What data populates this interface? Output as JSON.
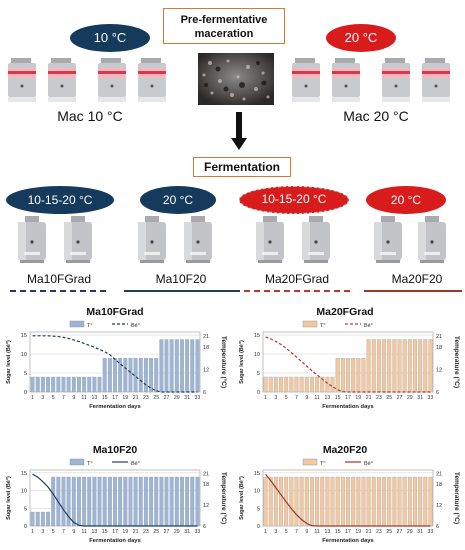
{
  "diagram": {
    "pre_fermentative_line1": "Pre-fermentative",
    "pre_fermentative_line2": "maceration",
    "fermentation_title": "Fermentation",
    "oval_10c": "10 °C",
    "oval_20c": "20 °C",
    "mac_10c_label": "Mac 10 °C",
    "mac_20c_label": "Mac 20 °C",
    "treatments": [
      {
        "oval": "10-15-20 °C",
        "name": "Ma10FGrad",
        "oval_color": "#163a5c",
        "line_color": "#1f3f60",
        "line": "dashed"
      },
      {
        "oval": "20 °C",
        "name": "Ma10F20",
        "oval_color": "#163a5c",
        "line_color": "#1f3f60",
        "line": "solid"
      },
      {
        "oval": "10-15-20 °C",
        "name": "Ma20FGrad",
        "oval_color": "#d81c1c",
        "line_color": "#b33c32",
        "line": "dashed"
      },
      {
        "oval": "20 °C",
        "name": "Ma20F20",
        "oval_color": "#d81c1c",
        "line_color": "#9b3a2c",
        "line": "solid"
      }
    ]
  },
  "chart_data": [
    {
      "type": "bar",
      "title": "Ma10FGrad",
      "legend": [
        "T°",
        "Bé°"
      ],
      "xlabel": "Fermentation days",
      "ylabel": "Sugar level (Bé°)",
      "y2label": "Temperature (°C)",
      "x_ticks": [
        "1",
        "3",
        "5",
        "7",
        "9",
        "11",
        "13",
        "15",
        "17",
        "19",
        "21",
        "23",
        "25",
        "27",
        "29",
        "31",
        "33"
      ],
      "yticks": [
        "0",
        "5",
        "10",
        "15"
      ],
      "y2ticks": [
        "6",
        "12",
        "18",
        "21"
      ],
      "ylim": [
        0,
        15.8
      ],
      "y2lim": [
        6,
        22
      ],
      "bar_color": "#9fb5d3",
      "line_color": "#1f3f60",
      "line_style": "dashed",
      "temperature": [
        10,
        10,
        10,
        10,
        10,
        10,
        10,
        10,
        10,
        10,
        10,
        10,
        10,
        10,
        15,
        15,
        15,
        15,
        15,
        15,
        15,
        15,
        15,
        15,
        15,
        20,
        20,
        20,
        20,
        20,
        20,
        20,
        20
      ],
      "sugar": [
        14.8,
        14.8,
        14.8,
        14.8,
        14.7,
        14.6,
        14.4,
        14.1,
        13.7,
        13.3,
        12.8,
        12.3,
        11.8,
        11.2,
        10.6,
        9.8,
        8.6,
        7.4,
        6.3,
        5.2,
        4.1,
        3.0,
        1.9,
        1.0,
        0.3,
        0,
        0,
        0,
        0,
        0,
        0,
        0,
        0
      ]
    },
    {
      "type": "bar",
      "title": "Ma20FGrad",
      "legend": [
        "T°",
        "Bé°"
      ],
      "xlabel": "Fermentation days",
      "ylabel": "Sugar level (Bé°)",
      "y2label": "Temperature (°C)",
      "x_ticks": [
        "1",
        "3",
        "5",
        "7",
        "9",
        "11",
        "13",
        "15",
        "17",
        "19",
        "21",
        "23",
        "25",
        "27",
        "29",
        "31",
        "33"
      ],
      "yticks": [
        "0",
        "5",
        "10",
        "15"
      ],
      "y2ticks": [
        "6",
        "12",
        "18",
        "21"
      ],
      "ylim": [
        0,
        15.8
      ],
      "y2lim": [
        6,
        22
      ],
      "bar_color": "#f4c79d",
      "line_color": "#b33c32",
      "line_style": "dashed",
      "temperature": [
        10,
        10,
        10,
        10,
        10,
        10,
        10,
        10,
        10,
        10,
        10,
        10,
        10,
        10,
        15,
        15,
        15,
        15,
        15,
        15,
        20,
        20,
        20,
        20,
        20,
        20,
        20,
        20,
        20,
        20,
        20,
        20,
        20
      ],
      "sugar": [
        14.5,
        14,
        13.3,
        12.5,
        11.5,
        10.4,
        9.2,
        8.0,
        6.8,
        5.6,
        4.5,
        3.4,
        2.3,
        1.4,
        0.6,
        0.1,
        0,
        0,
        0,
        0,
        0,
        0,
        0,
        0,
        0,
        0,
        0,
        0,
        0,
        0,
        0,
        0,
        0
      ]
    },
    {
      "type": "bar",
      "title": "Ma10F20",
      "legend": [
        "T°",
        "Bé°"
      ],
      "xlabel": "Fermentation days",
      "ylabel": "Sugar level (Bé°)",
      "y2label": "Temperature (°C)",
      "x_ticks": [
        "1",
        "3",
        "5",
        "7",
        "9",
        "11",
        "13",
        "15",
        "17",
        "19",
        "21",
        "23",
        "25",
        "27",
        "29",
        "31",
        "33"
      ],
      "yticks": [
        "0",
        "5",
        "10",
        "15"
      ],
      "y2ticks": [
        "6",
        "12",
        "18",
        "21"
      ],
      "ylim": [
        0,
        15.8
      ],
      "y2lim": [
        6,
        22
      ],
      "bar_color": "#9fb5d3",
      "line_color": "#1f3f60",
      "line_style": "solid",
      "temperature": [
        10,
        10,
        10,
        10,
        20,
        20,
        20,
        20,
        20,
        20,
        20,
        20,
        20,
        20,
        20,
        20,
        20,
        20,
        20,
        20,
        20,
        20,
        20,
        20,
        20,
        20,
        20,
        20,
        20,
        20,
        20,
        20,
        20
      ],
      "sugar": [
        14.6,
        13.8,
        12.5,
        11,
        9.0,
        6.8,
        4.6,
        2.6,
        1.0,
        0.2,
        0,
        0,
        0,
        0,
        0,
        0,
        0,
        0,
        0,
        0,
        0,
        0,
        0,
        0,
        0,
        0,
        0,
        0,
        0,
        0,
        0,
        0,
        0
      ]
    },
    {
      "type": "bar",
      "title": "Ma20F20",
      "legend": [
        "T°",
        "Bé°"
      ],
      "xlabel": "Fermentation days",
      "ylabel": "Sugar level (Bé°)",
      "y2label": "Temperature (°C)",
      "x_ticks": [
        "1",
        "3",
        "5",
        "7",
        "9",
        "11",
        "13",
        "15",
        "17",
        "19",
        "21",
        "23",
        "25",
        "27",
        "29",
        "31",
        "33"
      ],
      "yticks": [
        "0",
        "5",
        "10",
        "15"
      ],
      "y2ticks": [
        "6",
        "12",
        "18",
        "21"
      ],
      "ylim": [
        0,
        15.8
      ],
      "y2lim": [
        6,
        22
      ],
      "bar_color": "#f4c79d",
      "line_color": "#9b3a2c",
      "line_style": "solid",
      "temperature": [
        20,
        20,
        20,
        20,
        20,
        20,
        20,
        20,
        20,
        20,
        20,
        20,
        20,
        20,
        20,
        20,
        20,
        20,
        20,
        20,
        20,
        20,
        20,
        20,
        20,
        20,
        20,
        20,
        20,
        20,
        20,
        20,
        20
      ],
      "sugar": [
        14.6,
        12.8,
        10.8,
        8.8,
        6.8,
        4.9,
        3.2,
        1.8,
        0.7,
        0.1,
        0,
        0,
        0,
        0,
        0,
        0,
        0,
        0,
        0,
        0,
        0,
        0,
        0,
        0,
        0,
        0,
        0,
        0,
        0,
        0,
        0,
        0,
        0
      ]
    }
  ]
}
